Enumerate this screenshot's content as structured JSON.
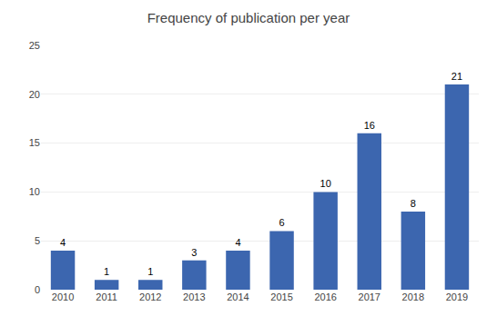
{
  "chart_data": {
    "type": "bar",
    "title": "Frequency of publication per year",
    "categories": [
      "2010",
      "2011",
      "2012",
      "2013",
      "2014",
      "2015",
      "2016",
      "2017",
      "2018",
      "2019"
    ],
    "values": [
      4,
      1,
      1,
      3,
      4,
      6,
      10,
      16,
      8,
      21
    ],
    "color": "#3C66AF",
    "ylim": [
      0,
      25
    ],
    "yticks": [
      0,
      5,
      10,
      15,
      20,
      25
    ],
    "grid": true,
    "data_labels": true
  }
}
